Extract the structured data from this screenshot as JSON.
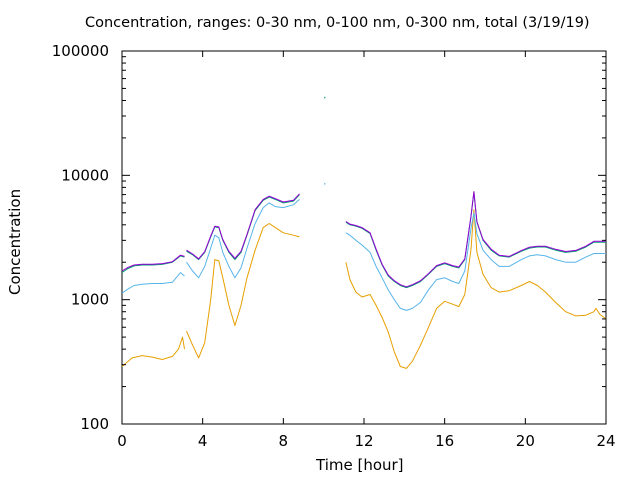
{
  "chart_data": {
    "type": "line",
    "title": "Concentration, ranges: 0-30 nm, 0-100 nm, 0-300 nm, total (3/19/19)",
    "xlabel": "Time [hour]",
    "ylabel": "Concentration",
    "xlim": [
      0,
      24
    ],
    "ylim": [
      100,
      100000
    ],
    "y_scale": "log",
    "x_ticks": [
      0,
      4,
      8,
      12,
      16,
      20,
      24
    ],
    "y_ticks": [
      100,
      1000,
      10000,
      100000
    ],
    "y_tick_labels": [
      "100",
      "1000",
      "10000",
      "100000"
    ],
    "grid": false,
    "legend": "none",
    "series": [
      {
        "color": "#e69f00",
        "segments": [
          [
            [
              0,
              290
            ],
            [
              0.5,
              340
            ],
            [
              1,
              355
            ],
            [
              1.5,
              345
            ],
            [
              2,
              330
            ],
            [
              2.5,
              350
            ],
            [
              2.8,
              400
            ],
            [
              3.0,
              500
            ],
            [
              3.1,
              400
            ]
          ],
          [
            [
              3.2,
              560
            ],
            [
              3.5,
              430
            ],
            [
              3.8,
              340
            ],
            [
              4.1,
              450
            ],
            [
              4.4,
              1000
            ],
            [
              4.6,
              2100
            ],
            [
              4.8,
              2050
            ],
            [
              5.0,
              1500
            ],
            [
              5.3,
              900
            ],
            [
              5.6,
              620
            ],
            [
              5.9,
              900
            ],
            [
              6.2,
              1500
            ],
            [
              6.6,
              2500
            ],
            [
              7.0,
              3800
            ],
            [
              7.3,
              4100
            ],
            [
              7.6,
              3800
            ],
            [
              8.0,
              3450
            ],
            [
              8.5,
              3300
            ],
            [
              8.8,
              3200
            ]
          ],
          [
            [
              11.1,
              2000
            ],
            [
              11.3,
              1450
            ],
            [
              11.6,
              1150
            ],
            [
              11.9,
              1050
            ],
            [
              12.3,
              1100
            ],
            [
              12.6,
              900
            ],
            [
              12.9,
              720
            ],
            [
              13.2,
              550
            ],
            [
              13.5,
              380
            ],
            [
              13.8,
              290
            ],
            [
              14.1,
              280
            ],
            [
              14.4,
              320
            ],
            [
              14.8,
              430
            ],
            [
              15.2,
              600
            ],
            [
              15.6,
              850
            ],
            [
              16.0,
              970
            ],
            [
              16.4,
              920
            ],
            [
              16.7,
              880
            ],
            [
              17.0,
              1100
            ],
            [
              17.3,
              2500
            ],
            [
              17.45,
              5300
            ],
            [
              17.6,
              2400
            ],
            [
              17.9,
              1600
            ],
            [
              18.3,
              1250
            ],
            [
              18.7,
              1150
            ],
            [
              19.2,
              1180
            ],
            [
              19.8,
              1300
            ],
            [
              20.2,
              1400
            ],
            [
              20.6,
              1300
            ],
            [
              21.0,
              1150
            ],
            [
              21.5,
              950
            ],
            [
              22.0,
              800
            ],
            [
              22.5,
              740
            ],
            [
              23.0,
              750
            ],
            [
              23.4,
              800
            ],
            [
              23.5,
              850
            ],
            [
              23.7,
              760
            ],
            [
              24,
              700
            ]
          ]
        ]
      },
      {
        "color": "#56b4e9",
        "segments": [
          [
            [
              0,
              1130
            ],
            [
              0.3,
              1220
            ],
            [
              0.6,
              1300
            ],
            [
              1.0,
              1330
            ],
            [
              1.5,
              1350
            ],
            [
              2.0,
              1350
            ],
            [
              2.5,
              1380
            ],
            [
              2.9,
              1650
            ],
            [
              3.1,
              1550
            ]
          ],
          [
            [
              3.2,
              2000
            ],
            [
              3.5,
              1700
            ],
            [
              3.8,
              1500
            ],
            [
              4.1,
              1850
            ],
            [
              4.4,
              2600
            ],
            [
              4.6,
              3300
            ],
            [
              4.8,
              3150
            ],
            [
              5.0,
              2400
            ],
            [
              5.3,
              1850
            ],
            [
              5.6,
              1500
            ],
            [
              5.9,
              1800
            ],
            [
              6.2,
              2600
            ],
            [
              6.6,
              4100
            ],
            [
              7.0,
              5500
            ],
            [
              7.3,
              6000
            ],
            [
              7.6,
              5600
            ],
            [
              8.0,
              5500
            ],
            [
              8.5,
              5800
            ],
            [
              8.8,
              6400
            ]
          ],
          [
            [
              11.1,
              3450
            ],
            [
              11.3,
              3300
            ],
            [
              11.6,
              3000
            ],
            [
              11.9,
              2750
            ],
            [
              12.3,
              2400
            ],
            [
              12.6,
              1850
            ],
            [
              12.9,
              1500
            ],
            [
              13.2,
              1200
            ],
            [
              13.5,
              1000
            ],
            [
              13.8,
              850
            ],
            [
              14.1,
              820
            ],
            [
              14.4,
              850
            ],
            [
              14.8,
              950
            ],
            [
              15.2,
              1200
            ],
            [
              15.6,
              1450
            ],
            [
              16.0,
              1500
            ],
            [
              16.4,
              1400
            ],
            [
              16.7,
              1350
            ],
            [
              17.0,
              1700
            ],
            [
              17.3,
              3700
            ],
            [
              17.45,
              5000
            ],
            [
              17.6,
              3400
            ],
            [
              17.9,
              2500
            ],
            [
              18.3,
              2100
            ],
            [
              18.7,
              1850
            ],
            [
              19.2,
              1850
            ],
            [
              19.8,
              2100
            ],
            [
              20.2,
              2250
            ],
            [
              20.6,
              2300
            ],
            [
              21.0,
              2250
            ],
            [
              21.5,
              2100
            ],
            [
              22.0,
              2000
            ],
            [
              22.5,
              2000
            ],
            [
              23.0,
              2200
            ],
            [
              23.4,
              2350
            ],
            [
              24,
              2350
            ]
          ]
        ]
      },
      {
        "color": "#009e73",
        "segments": [
          [
            [
              0,
              1650
            ],
            [
              0.3,
              1780
            ],
            [
              0.6,
              1870
            ],
            [
              1.0,
              1900
            ],
            [
              1.5,
              1900
            ],
            [
              2.0,
              1920
            ],
            [
              2.5,
              2000
            ],
            [
              2.9,
              2250
            ],
            [
              3.1,
              2200
            ]
          ],
          [
            [
              3.2,
              2450
            ],
            [
              3.5,
              2300
            ],
            [
              3.8,
              2100
            ],
            [
              4.1,
              2400
            ],
            [
              4.4,
              3200
            ],
            [
              4.6,
              3850
            ],
            [
              4.8,
              3800
            ],
            [
              5.0,
              3000
            ],
            [
              5.3,
              2400
            ],
            [
              5.6,
              2100
            ],
            [
              5.9,
              2400
            ],
            [
              6.2,
              3300
            ],
            [
              6.6,
              5200
            ],
            [
              7.0,
              6300
            ],
            [
              7.3,
              6700
            ],
            [
              7.6,
              6400
            ],
            [
              8.0,
              6000
            ],
            [
              8.5,
              6200
            ],
            [
              8.8,
              7000
            ]
          ],
          [
            [
              11.1,
              4200
            ],
            [
              11.3,
              4000
            ],
            [
              11.6,
              3900
            ],
            [
              11.9,
              3750
            ],
            [
              12.3,
              3400
            ],
            [
              12.6,
              2500
            ],
            [
              12.9,
              1900
            ],
            [
              13.2,
              1550
            ],
            [
              13.5,
              1400
            ],
            [
              13.8,
              1300
            ],
            [
              14.1,
              1250
            ],
            [
              14.4,
              1300
            ],
            [
              14.8,
              1400
            ],
            [
              15.2,
              1600
            ],
            [
              15.6,
              1850
            ],
            [
              16.0,
              1950
            ],
            [
              16.4,
              1850
            ],
            [
              16.7,
              1800
            ],
            [
              17.0,
              2100
            ],
            [
              17.3,
              4600
            ],
            [
              17.45,
              7300
            ],
            [
              17.6,
              4200
            ],
            [
              17.9,
              3000
            ],
            [
              18.3,
              2500
            ],
            [
              18.7,
              2250
            ],
            [
              19.2,
              2200
            ],
            [
              19.8,
              2450
            ],
            [
              20.2,
              2600
            ],
            [
              20.6,
              2650
            ],
            [
              21.0,
              2650
            ],
            [
              21.5,
              2500
            ],
            [
              22.0,
              2400
            ],
            [
              22.5,
              2450
            ],
            [
              23.0,
              2650
            ],
            [
              23.4,
              2900
            ],
            [
              24,
              2900
            ]
          ]
        ]
      },
      {
        "color": "#9400d3",
        "segments": [
          [
            [
              0,
              1700
            ],
            [
              0.3,
              1820
            ],
            [
              0.6,
              1900
            ],
            [
              1.0,
              1930
            ],
            [
              1.5,
              1930
            ],
            [
              2.0,
              1950
            ],
            [
              2.5,
              2020
            ],
            [
              2.9,
              2280
            ],
            [
              3.1,
              2230
            ]
          ],
          [
            [
              3.2,
              2500
            ],
            [
              3.5,
              2330
            ],
            [
              3.8,
              2130
            ],
            [
              4.1,
              2430
            ],
            [
              4.4,
              3250
            ],
            [
              4.6,
              3900
            ],
            [
              4.8,
              3850
            ],
            [
              5.0,
              3050
            ],
            [
              5.3,
              2450
            ],
            [
              5.6,
              2150
            ],
            [
              5.9,
              2450
            ],
            [
              6.2,
              3350
            ],
            [
              6.6,
              5300
            ],
            [
              7.0,
              6400
            ],
            [
              7.3,
              6800
            ],
            [
              7.6,
              6500
            ],
            [
              8.0,
              6100
            ],
            [
              8.5,
              6300
            ],
            [
              8.8,
              7100
            ]
          ],
          [
            [
              11.1,
              4250
            ],
            [
              11.3,
              4050
            ],
            [
              11.6,
              3950
            ],
            [
              11.9,
              3800
            ],
            [
              12.3,
              3450
            ],
            [
              12.6,
              2550
            ],
            [
              12.9,
              1930
            ],
            [
              13.2,
              1580
            ],
            [
              13.5,
              1420
            ],
            [
              13.8,
              1320
            ],
            [
              14.1,
              1270
            ],
            [
              14.4,
              1320
            ],
            [
              14.8,
              1420
            ],
            [
              15.2,
              1620
            ],
            [
              15.6,
              1880
            ],
            [
              16.0,
              1980
            ],
            [
              16.4,
              1880
            ],
            [
              16.7,
              1830
            ],
            [
              17.0,
              2130
            ],
            [
              17.3,
              4650
            ],
            [
              17.45,
              7400
            ],
            [
              17.6,
              4250
            ],
            [
              17.9,
              3050
            ],
            [
              18.3,
              2550
            ],
            [
              18.7,
              2280
            ],
            [
              19.2,
              2230
            ],
            [
              19.8,
              2480
            ],
            [
              20.2,
              2640
            ],
            [
              20.6,
              2690
            ],
            [
              21.0,
              2690
            ],
            [
              21.5,
              2540
            ],
            [
              22.0,
              2440
            ],
            [
              22.5,
              2490
            ],
            [
              23.0,
              2690
            ],
            [
              23.4,
              2950
            ],
            [
              24,
              2950
            ]
          ]
        ]
      }
    ],
    "isolated_points": [
      {
        "x": 10.05,
        "y": 42000,
        "color": "#009e73"
      },
      {
        "x": 10.05,
        "y": 8500,
        "color": "#56b4e9"
      }
    ]
  }
}
